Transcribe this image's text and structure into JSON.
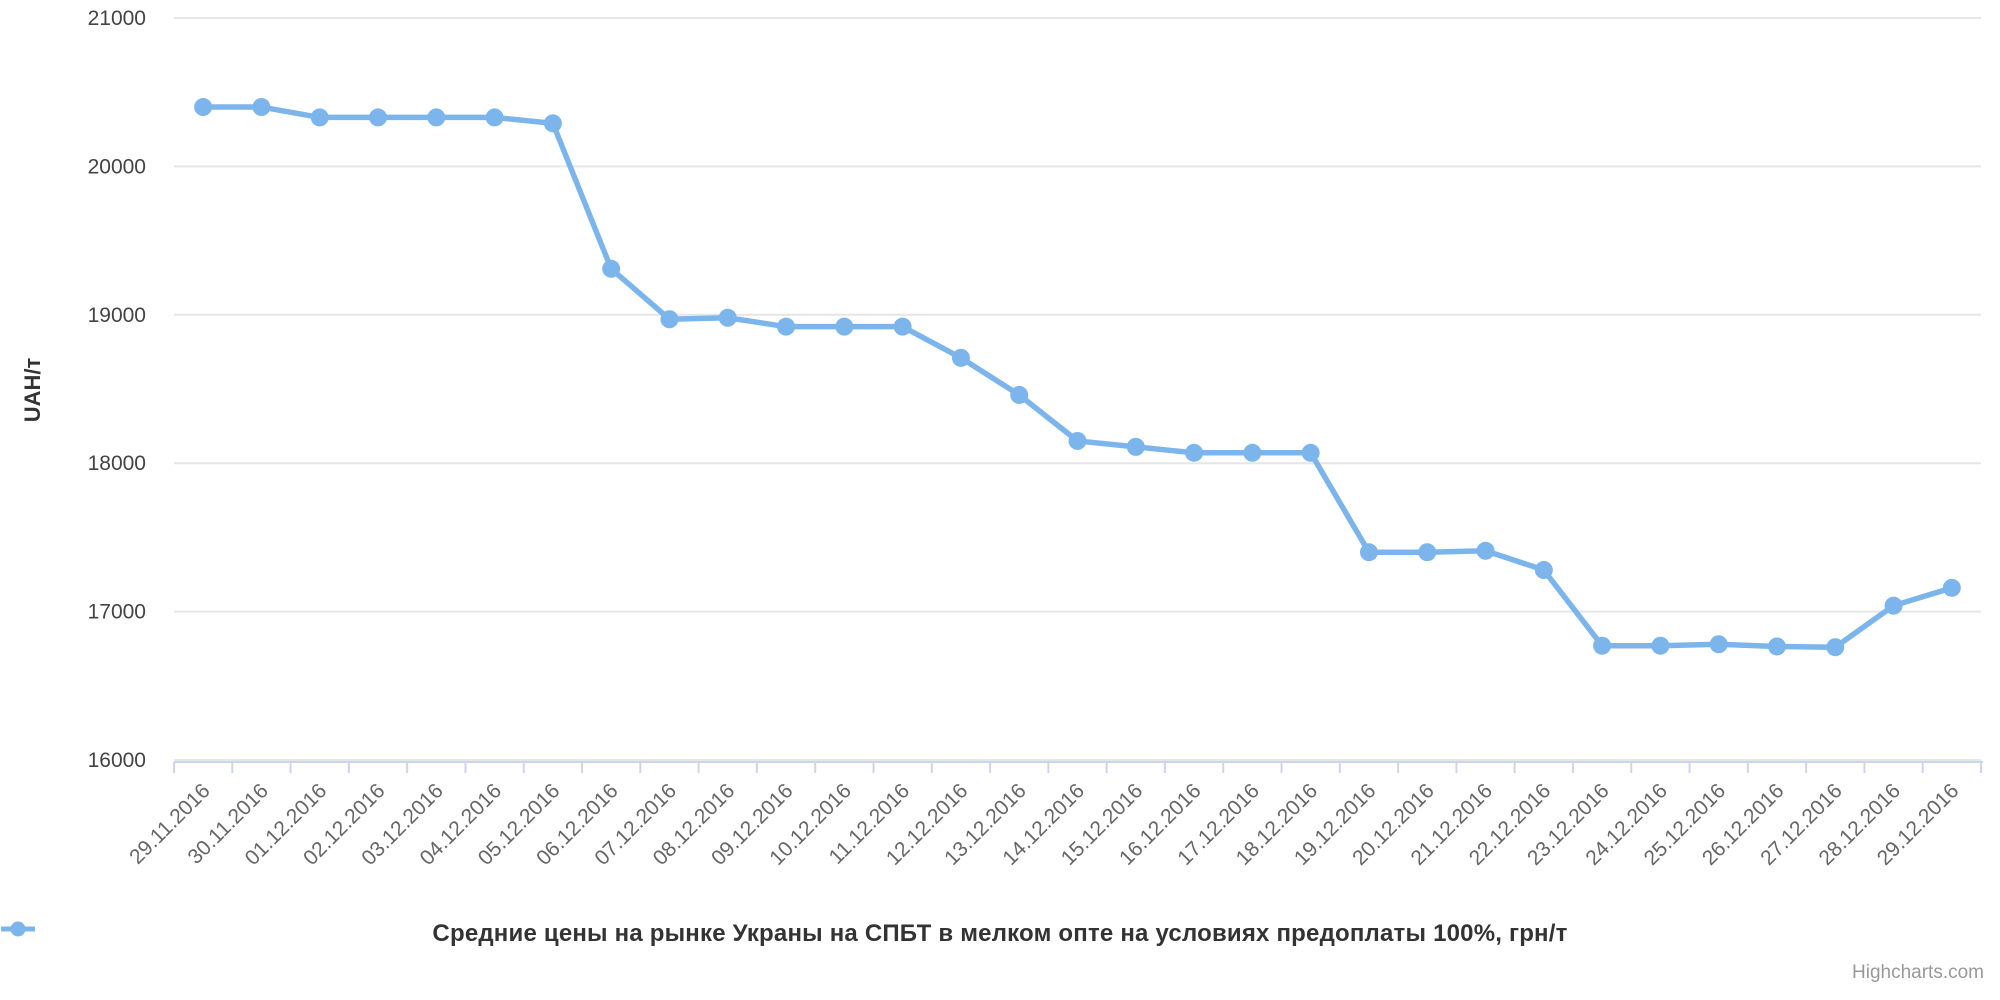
{
  "colors": {
    "series": "#7cb5ec",
    "grid": "#e6e6e6",
    "axis_line": "#ccd6eb",
    "x_label": "#666666",
    "y_label": "#444444",
    "y_title": "#333333",
    "legend_text": "#333333",
    "credits": "#999999",
    "background": "#ffffff"
  },
  "legend": {
    "label": "Средние цены на рынке Украны на СПБТ в мелком опте на условиях предоплаты 100%, грн/т"
  },
  "credits": {
    "label": "Highcharts.com"
  },
  "y_axis": {
    "title": "UAH/т"
  },
  "chart_data": {
    "type": "line",
    "title": "",
    "xlabel": "",
    "ylabel": "UAH/т",
    "ylim": [
      16000,
      21000
    ],
    "yticks": [
      16000,
      17000,
      18000,
      19000,
      20000,
      21000
    ],
    "grid": true,
    "legend_position": "bottom-center",
    "marker": "circle",
    "categories": [
      "29.11.2016",
      "30.11.2016",
      "01.12.2016",
      "02.12.2016",
      "03.12.2016",
      "04.12.2016",
      "05.12.2016",
      "06.12.2016",
      "07.12.2016",
      "08.12.2016",
      "09.12.2016",
      "10.12.2016",
      "11.12.2016",
      "12.12.2016",
      "13.12.2016",
      "14.12.2016",
      "15.12.2016",
      "16.12.2016",
      "17.12.2016",
      "18.12.2016",
      "19.12.2016",
      "20.12.2016",
      "21.12.2016",
      "22.12.2016",
      "23.12.2016",
      "24.12.2016",
      "25.12.2016",
      "26.12.2016",
      "27.12.2016",
      "28.12.2016",
      "29.12.2016"
    ],
    "series": [
      {
        "name": "Средние цены на рынке Украны на СПБТ в мелком опте на условиях предоплаты 100%, грн/т",
        "color": "#7cb5ec",
        "values": [
          20400,
          20400,
          20330,
          20330,
          20330,
          20330,
          20290,
          19310,
          18970,
          18980,
          18920,
          18920,
          18920,
          18710,
          18460,
          18150,
          18110,
          18070,
          18070,
          18070,
          17400,
          17400,
          17410,
          17280,
          16770,
          16770,
          16780,
          16765,
          16760,
          17040,
          17160
        ]
      }
    ]
  }
}
